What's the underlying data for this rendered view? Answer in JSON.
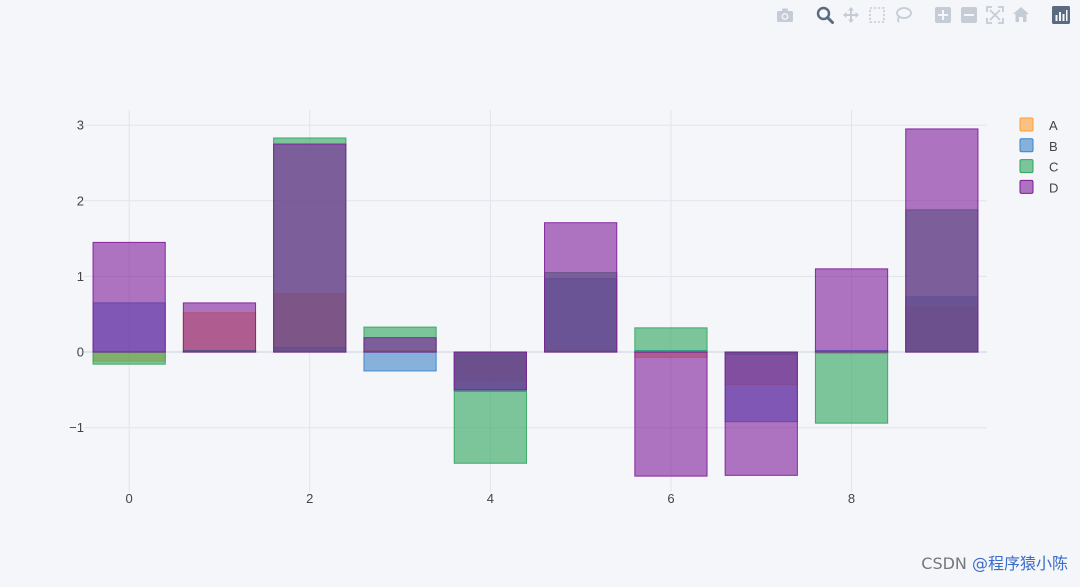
{
  "modebar": {
    "tools": [
      {
        "name": "camera-icon",
        "title": "Download plot as a png"
      },
      {
        "name": "zoom-icon",
        "title": "Zoom"
      },
      {
        "name": "pan-icon",
        "title": "Pan"
      },
      {
        "name": "box-select-icon",
        "title": "Box Select"
      },
      {
        "name": "lasso-select-icon",
        "title": "Lasso Select"
      },
      {
        "name": "zoom-in-icon",
        "title": "Zoom in"
      },
      {
        "name": "zoom-out-icon",
        "title": "Zoom out"
      },
      {
        "name": "autoscale-icon",
        "title": "Autoscale"
      },
      {
        "name": "reset-axes-icon",
        "title": "Reset axes"
      },
      {
        "name": "plotly-logo-icon",
        "title": "Produced with Plotly"
      }
    ]
  },
  "watermark": {
    "text": "CSDN @程序猿小陈",
    "prefix": "CSDN ",
    "handle": "@程序猿小陈"
  },
  "chart_data": {
    "type": "bar",
    "barmode": "overlay",
    "opacity": 0.6,
    "x": [
      0,
      1,
      2,
      3,
      4,
      5,
      6,
      7,
      8,
      9
    ],
    "series": [
      {
        "name": "A",
        "color": "#ff9e33",
        "values": [
          -0.12,
          0.52,
          0.77,
          0.02,
          -0.37,
          0.02,
          -0.07,
          -0.43,
          -0.02,
          0.6
        ]
      },
      {
        "name": "B",
        "color": "#3a84c6",
        "values": [
          0.65,
          0.02,
          0.06,
          -0.25,
          -0.52,
          0.97,
          0.02,
          -0.92,
          0.02,
          0.73
        ]
      },
      {
        "name": "C",
        "color": "#2ca55c",
        "values": [
          -0.16,
          0.02,
          2.83,
          0.33,
          -1.47,
          1.05,
          0.32,
          -0.03,
          -0.94,
          1.88
        ]
      },
      {
        "name": "D",
        "color": "#7d1b99",
        "values": [
          1.45,
          0.65,
          2.75,
          0.19,
          -0.5,
          1.71,
          -1.64,
          -1.63,
          1.1,
          2.95
        ]
      }
    ],
    "xaxis": {
      "range": [
        -0.5,
        9.5
      ],
      "ticks": [
        0,
        2,
        4,
        6,
        8
      ]
    },
    "yaxis": {
      "range": [
        -1.85,
        3.2
      ],
      "ticks": [
        3,
        2,
        1,
        0,
        -1
      ]
    },
    "tick_labels_y": [
      "3",
      "2",
      "1",
      "0",
      "−1"
    ],
    "tick_labels_x": [
      "0",
      "2",
      "4",
      "6",
      "8"
    ],
    "legend": {
      "placement": "top-right"
    },
    "grid": true,
    "title": "",
    "xlabel": "",
    "ylabel": ""
  }
}
